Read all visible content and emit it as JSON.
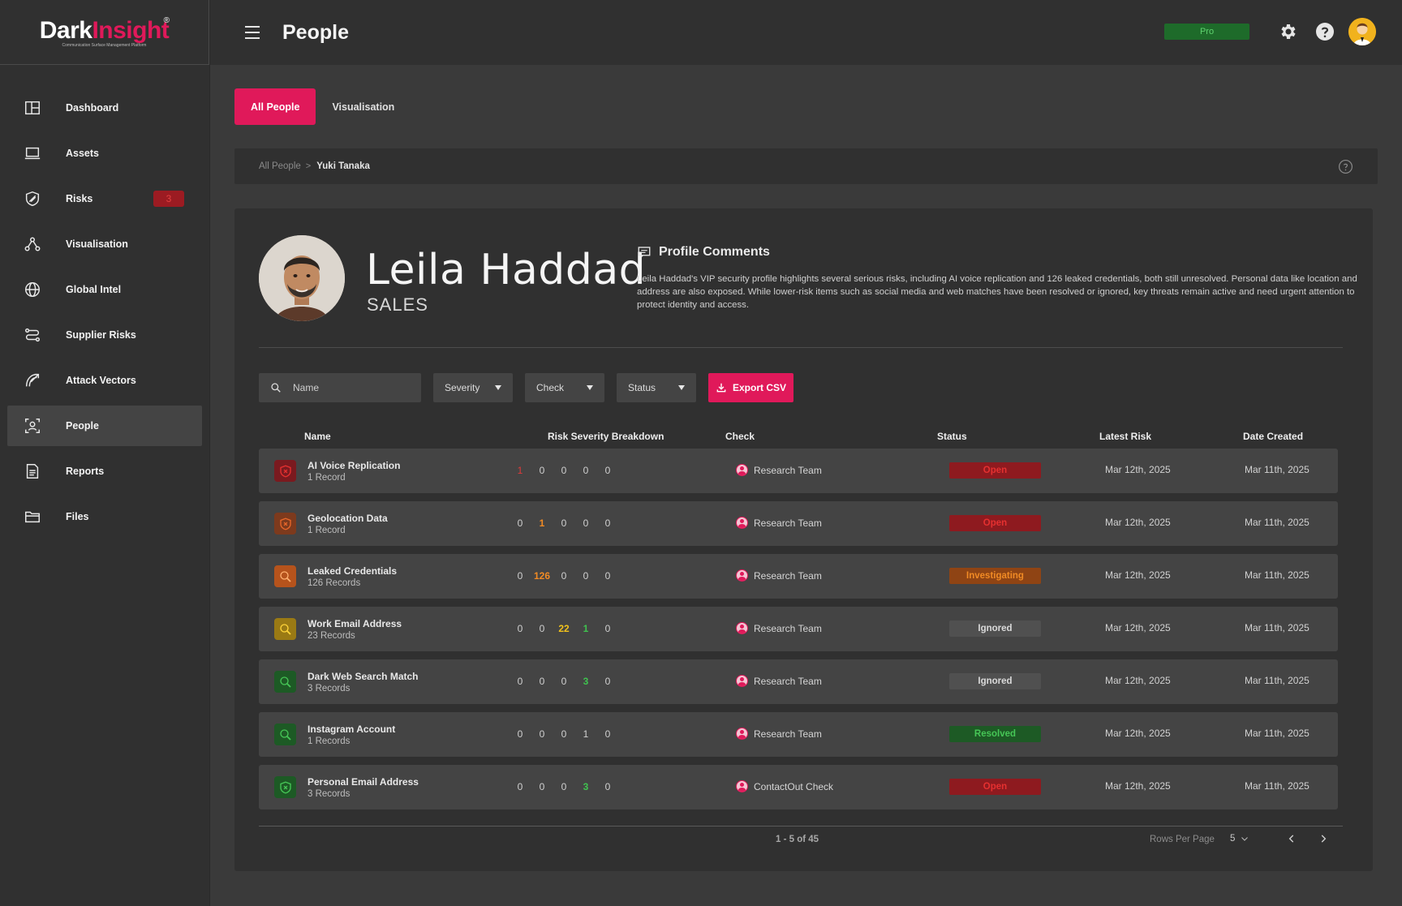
{
  "brand": {
    "dark": "Dark",
    "insight": "Insight",
    "reg": "®",
    "tagline": "Communication Surface Management Platform"
  },
  "colors": {
    "accent": "#e0195a",
    "open": "#e53030",
    "investigating": "#f08a24",
    "resolved": "#46c656"
  },
  "sidebar": {
    "items": [
      {
        "label": "Dashboard",
        "icon": "dashboard-icon"
      },
      {
        "label": "Assets",
        "icon": "laptop-icon"
      },
      {
        "label": "Risks",
        "icon": "shield-icon",
        "badge": "3"
      },
      {
        "label": "Visualisation",
        "icon": "graph-nodes-icon"
      },
      {
        "label": "Global Intel",
        "icon": "globe-icon"
      },
      {
        "label": "Supplier Risks",
        "icon": "supplier-icon"
      },
      {
        "label": "Attack Vectors",
        "icon": "attack-vector-icon"
      },
      {
        "label": "People",
        "icon": "person-scan-icon",
        "active": true
      },
      {
        "label": "Reports",
        "icon": "report-icon"
      },
      {
        "label": "Files",
        "icon": "folder-icon"
      }
    ]
  },
  "header": {
    "title": "People",
    "plan": "Pro"
  },
  "tabs": [
    {
      "label": "All People",
      "active": true
    },
    {
      "label": "Visualisation",
      "active": false
    }
  ],
  "breadcrumb": {
    "parent": "All People",
    "separator": ">",
    "current": "Yuki Tanaka"
  },
  "profile": {
    "name": "Leila Haddad",
    "role": "SALES",
    "comments_title": "Profile Comments",
    "comments": "Leila Haddad's VIP security profile highlights several serious risks, including AI voice replication and 126 leaked credentials, both still unresolved. Personal data like location and address are also exposed. While lower-risk items such as social media and web matches have been resolved or ignored, key threats remain active and need urgent attention to protect identity and access."
  },
  "filters": {
    "search_placeholder": "Name",
    "severity": "Severity",
    "check": "Check",
    "status": "Status",
    "export": "Export CSV"
  },
  "table": {
    "headers": {
      "name": "Name",
      "breakdown": "Risk Severity Breakdown",
      "check": "Check",
      "status": "Status",
      "latest": "Latest Risk",
      "created": "Date Created"
    },
    "rows": [
      {
        "title": "AI Voice Replication",
        "sub": "1 Record",
        "icon": "shield-x-icon",
        "tone": "red",
        "sev": [
          "1",
          "0",
          "0",
          "0",
          "0"
        ],
        "hl": [
          0,
          "red"
        ],
        "check": "Research Team",
        "status": "Open",
        "status_kind": "open",
        "latest": "Mar 12th, 2025",
        "created": "Mar 11th, 2025"
      },
      {
        "title": "Geolocation Data",
        "sub": "1 Record",
        "icon": "shield-x-icon",
        "tone": "orange",
        "sev": [
          "0",
          "1",
          "0",
          "0",
          "0"
        ],
        "hl": [
          1,
          "orange"
        ],
        "check": "Research Team",
        "status": "Open",
        "status_kind": "open",
        "latest": "Mar 12th, 2025",
        "created": "Mar 11th, 2025"
      },
      {
        "title": "Leaked Credentials",
        "sub": "126 Records",
        "icon": "search-icon",
        "tone": "orange2",
        "sev": [
          "0",
          "126",
          "0",
          "0",
          "0"
        ],
        "hl": [
          1,
          "orange"
        ],
        "check": "Research Team",
        "status": "Investigating",
        "status_kind": "investigating",
        "latest": "Mar 12th, 2025",
        "created": "Mar 11th, 2025"
      },
      {
        "title": "Work Email Address",
        "sub": "23 Records",
        "icon": "search-icon",
        "tone": "yellow",
        "sev": [
          "0",
          "0",
          "22",
          "1",
          "0"
        ],
        "hl": [
          2,
          "yellow"
        ],
        "hl2": [
          3,
          "green"
        ],
        "check": "Research Team",
        "status": "Ignored",
        "status_kind": "ignored",
        "latest": "Mar 12th, 2025",
        "created": "Mar 11th, 2025"
      },
      {
        "title": "Dark Web Search Match",
        "sub": "3 Records",
        "icon": "search-icon",
        "tone": "green",
        "sev": [
          "0",
          "0",
          "0",
          "3",
          "0"
        ],
        "hl": [
          3,
          "green"
        ],
        "check": "Research Team",
        "status": "Ignored",
        "status_kind": "ignored",
        "latest": "Mar 12th, 2025",
        "created": "Mar 11th, 2025"
      },
      {
        "title": "Instagram Account",
        "sub": "1 Records",
        "icon": "search-icon",
        "tone": "green",
        "sev": [
          "0",
          "0",
          "0",
          "1",
          "0"
        ],
        "hl": [
          -1,
          ""
        ],
        "check": "Research Team",
        "status": "Resolved",
        "status_kind": "resolved",
        "latest": "Mar 12th, 2025",
        "created": "Mar 11th, 2025"
      },
      {
        "title": "Personal Email Address",
        "sub": "3 Records",
        "icon": "shield-x-icon",
        "tone": "green",
        "sev": [
          "0",
          "0",
          "0",
          "3",
          "0"
        ],
        "hl": [
          3,
          "green"
        ],
        "check": "ContactOut Check",
        "status": "Open",
        "status_kind": "open",
        "latest": "Mar 12th, 2025",
        "created": "Mar 11th, 2025"
      }
    ]
  },
  "pagination": {
    "count": "1 - 5 of 45",
    "rows_label": "Rows Per Page",
    "rows_value": "5"
  }
}
